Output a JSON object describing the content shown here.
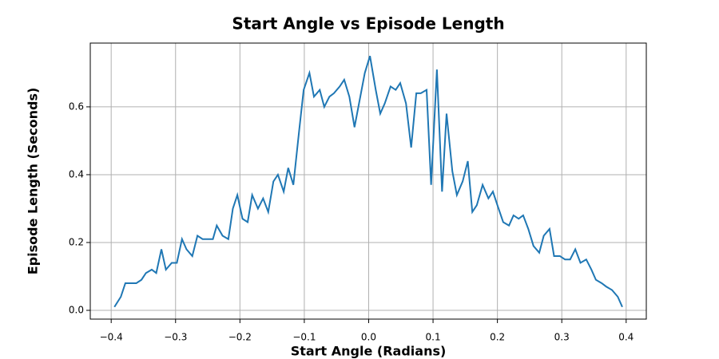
{
  "chart_data": {
    "type": "line",
    "title": "Start Angle vs Episode Length",
    "x_label": "Start Angle (Radians)",
    "y_label": "Episode Length (Seconds)",
    "xlim": [
      -0.4325,
      0.4313
    ],
    "ylim": [
      -0.0259,
      0.788
    ],
    "xticks": [
      {
        "value": -0.4,
        "label": "−0.4"
      },
      {
        "value": -0.3,
        "label": "−0.3"
      },
      {
        "value": -0.2,
        "label": "−0.2"
      },
      {
        "value": -0.1,
        "label": "−0.1"
      },
      {
        "value": 0,
        "label": "0.0"
      },
      0.1,
      0.2,
      0.3,
      0.4
    ],
    "yticks": [
      {
        "value": 0,
        "label": "0.0"
      },
      0.2,
      0.4,
      0.6
    ],
    "grid": true,
    "series": [
      {
        "color": "#1f77b4",
        "x": [
          -0.395,
          -0.385,
          -0.378,
          -0.369,
          -0.361,
          -0.353,
          -0.346,
          -0.337,
          -0.33,
          -0.322,
          -0.315,
          -0.306,
          -0.298,
          -0.29,
          -0.283,
          -0.274,
          -0.266,
          -0.258,
          -0.25,
          -0.242,
          -0.236,
          -0.227,
          -0.218,
          -0.211,
          -0.204,
          -0.196,
          -0.188,
          -0.181,
          -0.172,
          -0.164,
          -0.156,
          -0.148,
          -0.141,
          -0.132,
          -0.125,
          -0.117,
          -0.108,
          -0.101,
          -0.092,
          -0.085,
          -0.076,
          -0.069,
          -0.061,
          -0.054,
          -0.045,
          -0.038,
          -0.03,
          -0.022,
          -0.014,
          -0.006,
          0.002,
          0.011,
          0.018,
          0.025,
          0.034,
          0.042,
          0.049,
          0.058,
          0.066,
          0.074,
          0.081,
          0.09,
          0.097,
          0.106,
          0.114,
          0.121,
          0.13,
          0.137,
          0.146,
          0.154,
          0.161,
          0.168,
          0.177,
          0.186,
          0.193,
          0.2,
          0.209,
          0.218,
          0.225,
          0.233,
          0.24,
          0.248,
          0.256,
          0.265,
          0.272,
          0.281,
          0.288,
          0.297,
          0.305,
          0.313,
          0.321,
          0.329,
          0.338,
          0.346,
          0.353,
          0.362,
          0.369,
          0.378,
          0.387,
          0.394
        ],
        "values": [
          0.01,
          0.04,
          0.08,
          0.08,
          0.08,
          0.09,
          0.11,
          0.12,
          0.11,
          0.18,
          0.12,
          0.14,
          0.14,
          0.21,
          0.18,
          0.16,
          0.22,
          0.21,
          0.21,
          0.21,
          0.25,
          0.22,
          0.21,
          0.3,
          0.34,
          0.27,
          0.26,
          0.34,
          0.3,
          0.33,
          0.29,
          0.38,
          0.4,
          0.35,
          0.42,
          0.37,
          0.53,
          0.65,
          0.7,
          0.63,
          0.65,
          0.6,
          0.63,
          0.64,
          0.66,
          0.68,
          0.63,
          0.54,
          0.62,
          0.7,
          0.75,
          0.65,
          0.58,
          0.61,
          0.66,
          0.65,
          0.67,
          0.61,
          0.48,
          0.64,
          0.64,
          0.65,
          0.37,
          0.71,
          0.35,
          0.58,
          0.41,
          0.34,
          0.38,
          0.44,
          0.29,
          0.31,
          0.37,
          0.33,
          0.35,
          0.31,
          0.26,
          0.25,
          0.28,
          0.27,
          0.28,
          0.24,
          0.19,
          0.17,
          0.22,
          0.24,
          0.16,
          0.16,
          0.15,
          0.15,
          0.18,
          0.14,
          0.15,
          0.12,
          0.09,
          0.08,
          0.07,
          0.06,
          0.04,
          0.01
        ]
      }
    ]
  }
}
